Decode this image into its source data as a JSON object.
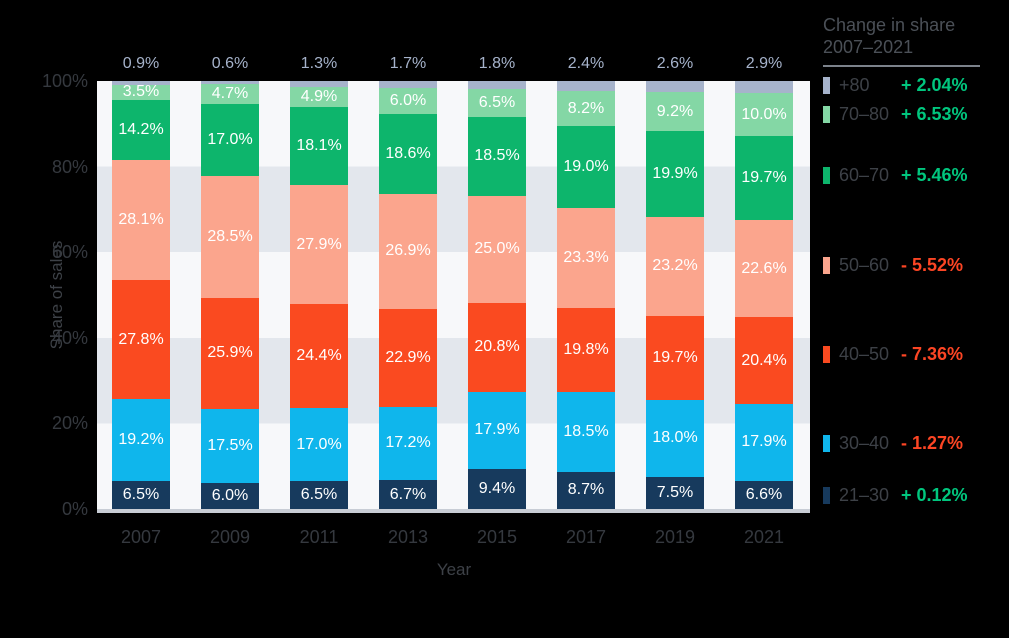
{
  "chart_data": {
    "type": "stacked-bar",
    "title": "",
    "xlabel": "Year",
    "ylabel": "Share of sales",
    "categories": [
      "2007",
      "2009",
      "2011",
      "2013",
      "2015",
      "2017",
      "2019",
      "2021"
    ],
    "y_ticks": [
      "100%",
      "80%",
      "60%",
      "40%",
      "20%",
      "0%"
    ],
    "ylim": [
      0,
      100
    ],
    "unit": "%",
    "grid": "alternating horizontal bands every 20%",
    "legend_position": "right",
    "series": [
      {
        "key": "plus-80",
        "name": "+80",
        "color": "#a6b3cb",
        "label_position": "above",
        "values": [
          0.9,
          0.6,
          1.3,
          1.7,
          1.8,
          2.4,
          2.6,
          2.9
        ]
      },
      {
        "key": "70-80",
        "name": "70–80",
        "color": "#84d7a5",
        "label_position": "inside",
        "values": [
          3.5,
          4.7,
          4.9,
          6.0,
          6.5,
          8.2,
          9.2,
          10.0
        ]
      },
      {
        "key": "60-70",
        "name": "60–70",
        "color": "#0db56c",
        "label_position": "inside",
        "values": [
          14.2,
          17.0,
          18.1,
          18.6,
          18.5,
          19.0,
          19.9,
          19.7
        ]
      },
      {
        "key": "50-60",
        "name": "50–60",
        "color": "#fba58d",
        "label_position": "inside",
        "values": [
          28.1,
          28.5,
          27.9,
          26.9,
          25.0,
          23.3,
          23.2,
          22.6
        ]
      },
      {
        "key": "40-50",
        "name": "40–50",
        "color": "#fa4a20",
        "label_position": "inside",
        "values": [
          27.8,
          25.9,
          24.4,
          22.9,
          20.8,
          19.8,
          19.7,
          20.4
        ]
      },
      {
        "key": "30-40",
        "name": "30–40",
        "color": "#0fb6ec",
        "label_position": "inside",
        "values": [
          19.2,
          17.5,
          17.0,
          17.2,
          17.9,
          18.5,
          18.0,
          17.9
        ]
      },
      {
        "key": "21-30",
        "name": "21–30",
        "color": "#173a5d",
        "label_position": "inside",
        "values": [
          6.5,
          6.0,
          6.5,
          6.7,
          9.4,
          8.7,
          7.5,
          6.6
        ]
      }
    ]
  },
  "legend": {
    "title_line1": "Change in share",
    "title_line2": "2007–2021",
    "positive_color": "#00c67e",
    "negative_color": "#fc4524",
    "items": [
      {
        "key": "plus-80",
        "label": "+80",
        "change": "+ 2.04%",
        "direction": "positive",
        "color": "#a6b3cb"
      },
      {
        "key": "70-80",
        "label": "70–80",
        "change": "+ 6.53%",
        "direction": "positive",
        "color": "#84d7a5"
      },
      {
        "key": "60-70",
        "label": "60–70",
        "change": "+ 5.46%",
        "direction": "positive",
        "color": "#0db56c"
      },
      {
        "key": "50-60",
        "label": "50–60",
        "change": "- 5.52%",
        "direction": "negative",
        "color": "#fba58d"
      },
      {
        "key": "40-50",
        "label": "40–50",
        "change": "- 7.36%",
        "direction": "negative",
        "color": "#fa4a20"
      },
      {
        "key": "30-40",
        "label": "30–40",
        "change": "- 1.27%",
        "direction": "negative",
        "color": "#0fb6ec"
      },
      {
        "key": "21-30",
        "label": "21–30",
        "change": "+ 0.12%",
        "direction": "positive",
        "color": "#173a5d"
      }
    ]
  }
}
